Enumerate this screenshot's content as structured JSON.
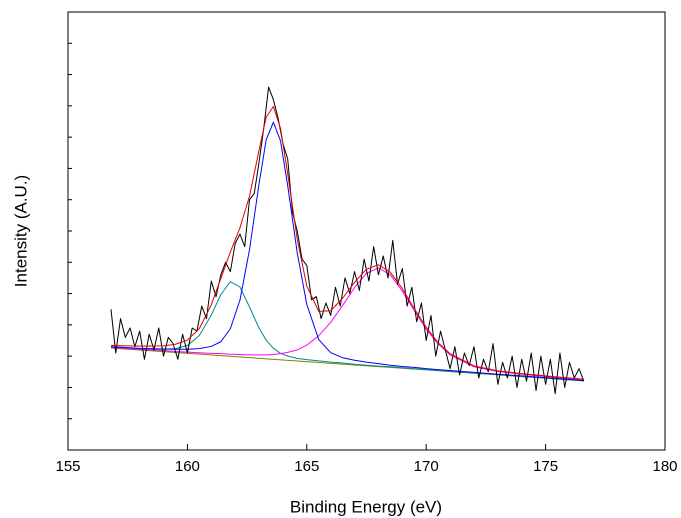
{
  "chart_data": {
    "type": "line",
    "x_label": "Binding Energy (eV)",
    "y_label": "Intensity (A.U.)",
    "xlim": [
      155,
      180
    ],
    "xticks": [
      155,
      160,
      165,
      170,
      175,
      180
    ],
    "ylim": [
      0,
      14
    ],
    "yticks": [
      1,
      2,
      3,
      4,
      5,
      6,
      7,
      8,
      9,
      10,
      11,
      12,
      13
    ],
    "series": [
      {
        "color": "#808000",
        "x": [
          156.8,
          176.6
        ],
        "values": [
          3.26,
          2.21
        ]
      },
      {
        "color": "#008b8b",
        "x": [
          156.8,
          158,
          159,
          159.5,
          160,
          160.5,
          161,
          161.4,
          161.8,
          162.2,
          162.6,
          163,
          163.3,
          163.6,
          163.9,
          164.2,
          164.6,
          165,
          165.5,
          166,
          166.5,
          167,
          167.5,
          168,
          168.5,
          169,
          169.5,
          170,
          170.5,
          171,
          172,
          173,
          174,
          175,
          176.6
        ],
        "values": [
          3.28,
          3.24,
          3.22,
          3.24,
          3.34,
          3.66,
          4.31,
          4.97,
          5.38,
          5.21,
          4.57,
          3.9,
          3.51,
          3.25,
          3.09,
          3.0,
          2.93,
          2.89,
          2.85,
          2.81,
          2.78,
          2.74,
          2.71,
          2.68,
          2.66,
          2.63,
          2.6,
          2.57,
          2.54,
          2.51,
          2.46,
          2.41,
          2.35,
          2.3,
          2.21
        ]
      },
      {
        "color": "#ff00ff",
        "x": [
          156.8,
          158,
          159,
          159.5,
          160,
          160.5,
          161,
          161.4,
          161.8,
          162.2,
          162.6,
          163,
          163.3,
          163.6,
          163.9,
          164.2,
          164.6,
          165,
          165.5,
          166,
          166.5,
          167,
          167.5,
          168,
          168.5,
          169,
          169.5,
          170,
          170.5,
          171,
          172,
          173,
          174,
          175,
          176.6
        ],
        "values": [
          3.28,
          3.22,
          3.18,
          3.15,
          3.13,
          3.11,
          3.09,
          3.08,
          3.06,
          3.05,
          3.04,
          3.04,
          3.04,
          3.05,
          3.08,
          3.12,
          3.2,
          3.35,
          3.65,
          4.08,
          4.62,
          5.19,
          5.65,
          5.82,
          5.6,
          5.08,
          4.46,
          3.86,
          3.39,
          3.04,
          2.66,
          2.51,
          2.42,
          2.35,
          2.25
        ]
      },
      {
        "color": "#0000ff",
        "x": [
          156.8,
          158,
          159,
          159.5,
          160,
          160.5,
          161,
          161.4,
          161.8,
          162.2,
          162.6,
          163,
          163.3,
          163.6,
          163.9,
          164.2,
          164.6,
          165,
          165.5,
          166,
          166.5,
          167,
          167.5,
          168,
          168.5,
          169,
          169.5,
          170,
          170.5,
          171,
          172,
          173,
          174,
          175,
          176.6
        ],
        "values": [
          3.3,
          3.25,
          3.23,
          3.22,
          3.22,
          3.24,
          3.31,
          3.46,
          3.88,
          4.79,
          6.4,
          8.51,
          9.92,
          10.48,
          9.88,
          8.45,
          6.3,
          4.65,
          3.53,
          3.11,
          2.95,
          2.87,
          2.81,
          2.76,
          2.71,
          2.67,
          2.64,
          2.6,
          2.57,
          2.54,
          2.48,
          2.42,
          2.37,
          2.31,
          2.22
        ]
      },
      {
        "color": "#000000",
        "x": [
          156.8,
          157.0,
          157.2,
          157.4,
          157.6,
          157.8,
          158.0,
          158.2,
          158.4,
          158.6,
          158.8,
          159.0,
          159.2,
          159.4,
          159.6,
          159.8,
          160.0,
          160.2,
          160.4,
          160.6,
          160.8,
          161.0,
          161.2,
          161.4,
          161.6,
          161.8,
          162.0,
          162.2,
          162.4,
          162.6,
          162.8,
          163.0,
          163.2,
          163.4,
          163.6,
          163.8,
          164.0,
          164.2,
          164.4,
          164.6,
          164.8,
          165.0,
          165.2,
          165.4,
          165.6,
          165.8,
          166.0,
          166.2,
          166.4,
          166.6,
          166.8,
          167.0,
          167.2,
          167.4,
          167.6,
          167.8,
          168.0,
          168.2,
          168.4,
          168.6,
          168.8,
          169.0,
          169.2,
          169.4,
          169.6,
          169.8,
          170.0,
          170.2,
          170.4,
          170.6,
          170.8,
          171.0,
          171.2,
          171.4,
          171.6,
          171.8,
          172.0,
          172.2,
          172.4,
          172.6,
          172.8,
          173.0,
          173.2,
          173.4,
          173.6,
          173.8,
          174.0,
          174.2,
          174.4,
          174.6,
          174.8,
          175.0,
          175.2,
          175.4,
          175.6,
          175.8,
          176.0,
          176.2,
          176.4,
          176.6
        ],
        "values": [
          4.5,
          3.1,
          4.2,
          3.6,
          3.9,
          3.3,
          3.8,
          2.9,
          3.7,
          3.2,
          3.9,
          3.0,
          3.6,
          3.4,
          2.9,
          3.7,
          3.1,
          3.9,
          3.8,
          4.6,
          4.2,
          5.4,
          4.9,
          5.6,
          6.0,
          5.7,
          6.6,
          6.9,
          6.5,
          8.0,
          8.2,
          9.2,
          10.3,
          11.6,
          11.2,
          10.6,
          9.8,
          9.3,
          7.6,
          7.0,
          6.1,
          5.9,
          4.8,
          4.9,
          4.2,
          4.7,
          4.3,
          5.2,
          4.6,
          5.5,
          5.0,
          5.7,
          5.1,
          6.1,
          5.4,
          6.5,
          5.6,
          6.2,
          5.5,
          6.7,
          5.3,
          5.8,
          4.6,
          5.2,
          4.1,
          4.7,
          3.5,
          4.3,
          3.0,
          3.8,
          3.2,
          2.6,
          3.3,
          2.4,
          3.1,
          2.7,
          3.3,
          2.3,
          2.9,
          2.5,
          3.4,
          2.1,
          2.8,
          2.3,
          3.0,
          2.0,
          2.9,
          2.2,
          3.1,
          1.9,
          3.0,
          2.1,
          2.9,
          1.8,
          3.1,
          2.0,
          2.8,
          2.3,
          2.6,
          2.2
        ]
      },
      {
        "color": "#e00000",
        "x": [
          156.8,
          158,
          159,
          159.5,
          160,
          160.5,
          161,
          161.4,
          161.8,
          162.2,
          162.6,
          163,
          163.3,
          163.6,
          163.9,
          164.2,
          164.6,
          165,
          165.5,
          166,
          166.5,
          167,
          167.5,
          168,
          168.5,
          169,
          169.5,
          170,
          170.5,
          171,
          172,
          173,
          174,
          175,
          176.6
        ],
        "values": [
          3.34,
          3.32,
          3.33,
          3.38,
          3.51,
          3.88,
          4.64,
          5.48,
          6.33,
          7.1,
          8.11,
          9.58,
          10.64,
          10.98,
          10.28,
          8.83,
          6.74,
          5.24,
          4.43,
          4.45,
          4.85,
          5.36,
          5.78,
          5.92,
          5.68,
          5.16,
          4.52,
          3.92,
          3.43,
          3.08,
          2.69,
          2.53,
          2.44,
          2.37,
          2.26
        ]
      }
    ]
  }
}
